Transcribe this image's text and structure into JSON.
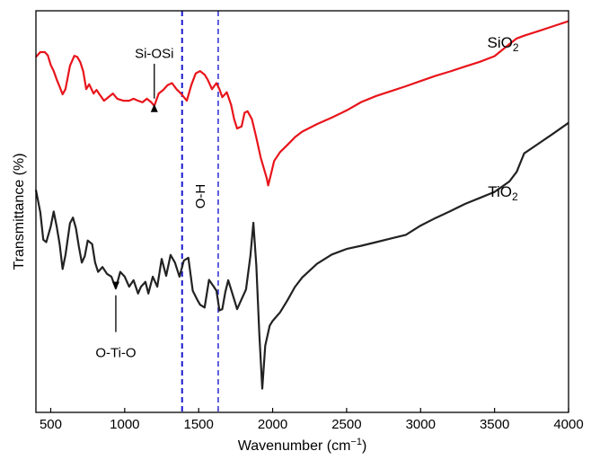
{
  "chart_data": {
    "type": "line",
    "title": "",
    "xlabel": "Wavenumber (cm",
    "xlabel_sup": "−1",
    "xlabel_close": ")",
    "ylabel": "Transmittance (%)",
    "xlim": [
      400,
      4000
    ],
    "ylim": [
      0,
      100
    ],
    "xticks": [
      500,
      1000,
      1500,
      2000,
      2500,
      3000,
      3500,
      4000
    ],
    "grid": false,
    "series": [
      {
        "name": "SiO",
        "name_sub": "2",
        "color": "#e8141b",
        "x": [
          400,
          430,
          460,
          480,
          500,
          520,
          540,
          560,
          580,
          600,
          630,
          660,
          680,
          700,
          720,
          740,
          760,
          790,
          810,
          830,
          860,
          890,
          920,
          950,
          990,
          1030,
          1060,
          1090,
          1120,
          1150,
          1180,
          1200,
          1230,
          1260,
          1290,
          1320,
          1350,
          1380,
          1400,
          1420,
          1450,
          1480,
          1510,
          1540,
          1560,
          1590,
          1620,
          1640,
          1660,
          1690,
          1720,
          1740,
          1760,
          1790,
          1810,
          1830,
          1860,
          1890,
          1920,
          1940,
          1960,
          1970,
          1990,
          2010,
          2050,
          2100,
          2150,
          2200,
          2300,
          2400,
          2500,
          2600,
          2700,
          2800,
          2900,
          3000,
          3100,
          3200,
          3300,
          3400,
          3500,
          3600,
          3650,
          3700,
          3800,
          3900,
          4000
        ],
        "y": [
          88.5,
          89.7,
          89.7,
          88.9,
          86.5,
          85.0,
          82.9,
          81.1,
          79.2,
          80.5,
          86.3,
          88.8,
          88.5,
          87.2,
          84.9,
          80.5,
          81.7,
          79.4,
          80.3,
          79.2,
          77.6,
          78.5,
          79.4,
          78.1,
          77.6,
          77.6,
          78.1,
          77.6,
          77.2,
          78.1,
          77.2,
          76.3,
          79.4,
          80.3,
          81.5,
          82.0,
          80.5,
          79.4,
          78.5,
          77.6,
          81.5,
          84.4,
          85.0,
          84.1,
          82.9,
          80.5,
          82.0,
          80.5,
          78.5,
          79.7,
          76.5,
          73.0,
          70.7,
          71.2,
          74.6,
          75.0,
          73.0,
          68.4,
          63.3,
          60.8,
          58.3,
          56.5,
          59.5,
          62.6,
          64.8,
          66.6,
          68.5,
          69.9,
          71.8,
          73.4,
          75.2,
          77.3,
          78.8,
          80.0,
          81.2,
          82.5,
          83.8,
          84.9,
          86.1,
          87.3,
          88.7,
          91.7,
          93.1,
          93.8,
          95.0,
          96.2,
          97.4
        ]
      },
      {
        "name": "TiO",
        "name_sub": "2",
        "color": "#222222",
        "x": [
          400,
          430,
          450,
          470,
          500,
          520,
          540,
          560,
          580,
          600,
          630,
          650,
          670,
          690,
          710,
          730,
          750,
          780,
          800,
          820,
          850,
          880,
          910,
          940,
          970,
          1000,
          1030,
          1060,
          1090,
          1110,
          1140,
          1160,
          1190,
          1220,
          1250,
          1280,
          1310,
          1340,
          1370,
          1400,
          1430,
          1460,
          1490,
          1510,
          1540,
          1570,
          1600,
          1620,
          1640,
          1660,
          1680,
          1700,
          1730,
          1760,
          1790,
          1820,
          1850,
          1870,
          1890,
          1910,
          1930,
          1950,
          1980,
          2000,
          2050,
          2100,
          2150,
          2200,
          2300,
          2400,
          2500,
          2600,
          2700,
          2800,
          2900,
          3000,
          3100,
          3200,
          3300,
          3400,
          3500,
          3600,
          3650,
          3700,
          3800,
          3900,
          4000
        ],
        "y": [
          55.4,
          49.8,
          43.0,
          42.4,
          46.3,
          50.0,
          46.3,
          41.9,
          35.7,
          39.2,
          47.1,
          48.5,
          45.9,
          41.3,
          37.3,
          38.9,
          42.8,
          41.9,
          37.3,
          35.0,
          36.2,
          34.5,
          33.8,
          30.9,
          35.0,
          33.8,
          31.3,
          32.9,
          29.6,
          31.3,
          32.5,
          29.6,
          33.8,
          31.3,
          38.2,
          34.0,
          39.2,
          37.3,
          33.8,
          37.8,
          38.5,
          30.3,
          28.1,
          26.8,
          26.1,
          33.0,
          31.4,
          30.3,
          25.4,
          25.7,
          29.9,
          32.9,
          29.3,
          25.7,
          28.2,
          30.6,
          39.0,
          47.2,
          36.5,
          19.6,
          5.9,
          16.6,
          21.6,
          22.8,
          24.9,
          27.9,
          31.2,
          33.6,
          37.0,
          39.3,
          40.7,
          41.5,
          42.4,
          43.3,
          44.2,
          46.5,
          48.4,
          50.1,
          51.9,
          53.4,
          54.9,
          57.5,
          59.9,
          64.5,
          67.0,
          69.5,
          72.1
        ]
      }
    ],
    "reference_lines": [
      1388,
      1632
    ],
    "reference_color": "#1a1ad0",
    "annotations": [
      {
        "text": "Si-OSi",
        "x": 1200,
        "arrow_tip_y": 76.8,
        "arrow_tail_y": 86.8,
        "label_y": 88.2,
        "anchor": "middle"
      },
      {
        "text": "O-Ti-O",
        "x": 940,
        "arrow_tip_y": 30.5,
        "arrow_tail_y": 20.0,
        "label_y": 13.8,
        "anchor": "middle"
      }
    ],
    "vertical_label": {
      "text": "O-H",
      "x": 1510,
      "y": 53.8
    }
  }
}
